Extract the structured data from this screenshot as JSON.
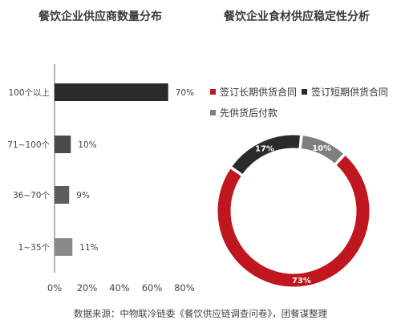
{
  "chart_data": [
    {
      "type": "bar",
      "orientation": "horizontal",
      "title": "餐饮企业供应商数量分布",
      "categories": [
        "100个以上",
        "71~100个",
        "36~70个",
        "1~35个"
      ],
      "values": [
        70,
        10,
        9,
        11
      ],
      "value_labels": [
        "70%",
        "10%",
        "9%",
        "11%"
      ],
      "colors": [
        "#2a2a2a",
        "#4a4a4a",
        "#5c5c5c",
        "#8a8a8a"
      ],
      "xlim": [
        0,
        80
      ],
      "xticks": [
        "0%",
        "20%",
        "40%",
        "60%",
        "80%"
      ],
      "grid": false
    },
    {
      "type": "pie",
      "variant": "donut",
      "title": "餐饮企业食材供应稳定性分析",
      "legend_position": "top",
      "slices": [
        {
          "name": "签订长期供货合同",
          "value": 73,
          "label": "73%",
          "color": "#c0161f"
        },
        {
          "name": "签订短期供货合同",
          "value": 17,
          "label": "17%",
          "color": "#2b2b2b"
        },
        {
          "name": "先供货后付款",
          "value": 10,
          "label": "10%",
          "color": "#7f7f7f"
        }
      ]
    }
  ],
  "source_text": "数据来源：中物联冷链委《餐饮供应链调查问卷》，团餐谋整理"
}
